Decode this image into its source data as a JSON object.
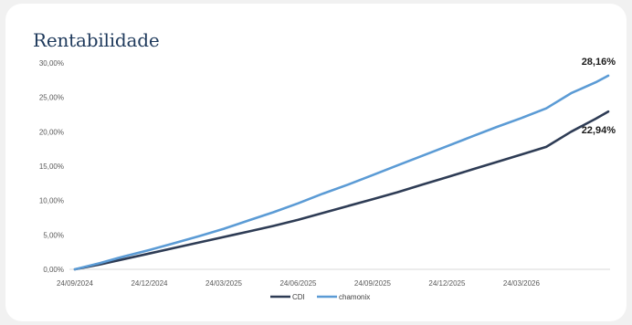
{
  "card": {
    "title": "Rentabilidade"
  },
  "chart_data": {
    "type": "line",
    "title": "Rentabilidade",
    "xlabel": "",
    "ylabel": "",
    "x_ticks": [
      "24/09/2024",
      "24/12/2024",
      "24/03/2025",
      "24/06/2025",
      "24/09/2025",
      "24/12/2025",
      "24/03/2026"
    ],
    "y_ticks": [
      "0,00%",
      "5,00%",
      "10,00%",
      "15,00%",
      "20,00%",
      "25,00%",
      "30,00%"
    ],
    "ylim": [
      0,
      30
    ],
    "x_unit": "months since 24/09/2024",
    "grid": false,
    "legend": "bottom-center",
    "series": [
      {
        "name": "CDI",
        "color": "#2e3c55",
        "x": [
          0,
          1,
          2,
          3,
          4,
          5,
          6,
          7,
          8,
          9,
          10,
          11,
          12,
          13,
          14,
          15,
          16,
          17,
          18,
          19,
          20,
          21,
          21.5
        ],
        "values": [
          0,
          0.7,
          1.5,
          2.3,
          3.1,
          3.9,
          4.7,
          5.5,
          6.3,
          7.2,
          8.2,
          9.2,
          10.2,
          11.2,
          12.3,
          13.4,
          14.5,
          15.6,
          16.7,
          17.8,
          20.0,
          21.9,
          22.94
        ],
        "end_label": "22,94%"
      },
      {
        "name": "chamonix",
        "color": "#5b9bd5",
        "x": [
          0,
          1,
          2,
          3,
          4,
          5,
          6,
          7,
          8,
          9,
          10,
          11,
          12,
          13,
          14,
          15,
          16,
          17,
          18,
          19,
          20,
          21,
          21.5
        ],
        "values": [
          0,
          0.9,
          1.9,
          2.8,
          3.8,
          4.8,
          5.9,
          7.1,
          8.3,
          9.6,
          11.0,
          12.3,
          13.7,
          15.1,
          16.5,
          17.9,
          19.3,
          20.7,
          22.0,
          23.4,
          25.6,
          27.2,
          28.16
        ],
        "end_label": "28,16%"
      }
    ]
  }
}
